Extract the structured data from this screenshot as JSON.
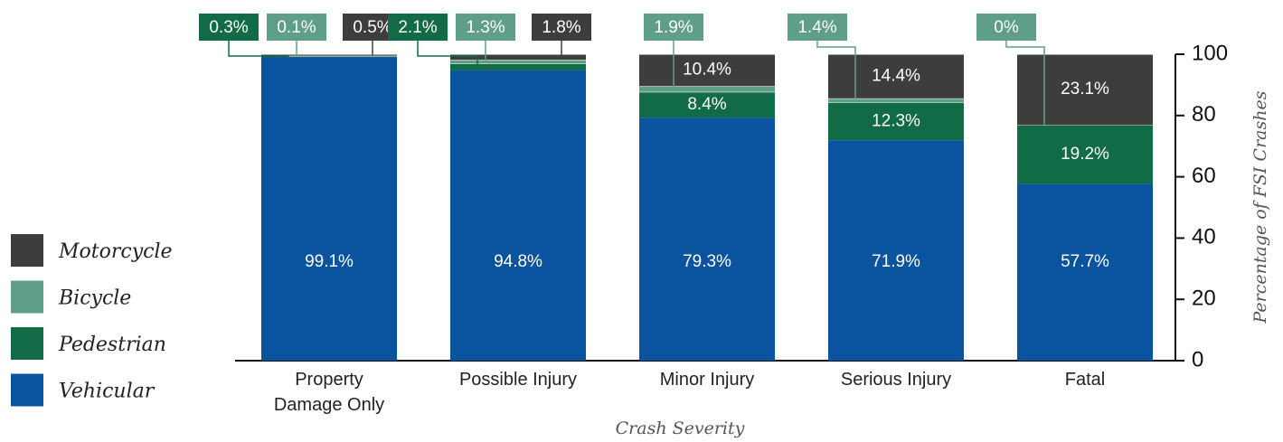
{
  "chart_data": {
    "type": "stacked_bar",
    "categories": [
      "Property Damage Only",
      "Possible Injury",
      "Minor Injury",
      "Serious Injury",
      "Fatal"
    ],
    "series": [
      {
        "name": "Vehicular",
        "color": "#0a539e",
        "values": [
          99.1,
          94.8,
          79.3,
          71.9,
          57.7
        ],
        "value_labels": [
          "99.1%",
          "94.8%",
          "79.3%",
          "71.9%",
          "57.7%"
        ]
      },
      {
        "name": "Pedestrian",
        "color": "#116b47",
        "values": [
          0.3,
          2.1,
          8.4,
          12.3,
          19.2
        ],
        "value_labels": [
          "0.3%",
          "2.1%",
          "8.4%",
          "12.3%",
          "19.2%"
        ]
      },
      {
        "name": "Bicycle",
        "color": "#5f9e88",
        "values": [
          0.1,
          1.3,
          1.9,
          1.4,
          0
        ],
        "value_labels": [
          "0.1%",
          "1.3%",
          "1.9%",
          "1.4%",
          "0%"
        ]
      },
      {
        "name": "Motorcycle",
        "color": "#3d3d3b",
        "values": [
          0.5,
          1.8,
          10.4,
          14.4,
          23.1
        ],
        "value_labels": [
          "0.5%",
          "1.8%",
          "10.4%",
          "14.4%",
          "23.1%"
        ]
      }
    ],
    "xlabel": "Crash Severity",
    "ylabel": "Percentage of FSI Crashes",
    "ylim": [
      0,
      100
    ],
    "yticks": [
      0,
      20,
      40,
      60,
      80,
      100
    ],
    "legend": "left"
  }
}
